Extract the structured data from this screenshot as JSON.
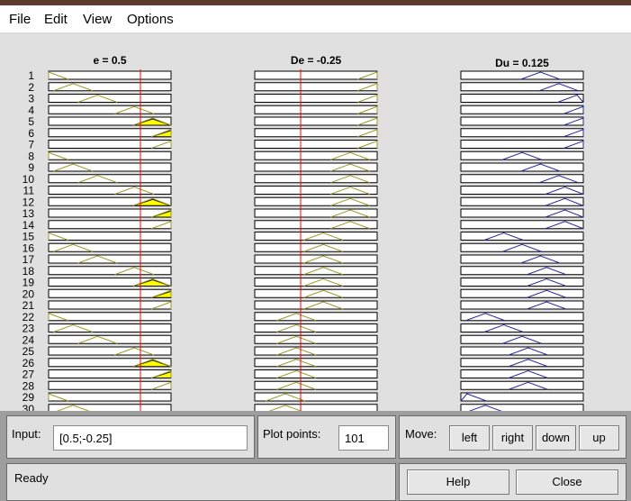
{
  "menu": {
    "file": "File",
    "edit": "Edit",
    "view": "View",
    "options": "Options"
  },
  "panels": [
    {
      "title": "e = 0.5",
      "input_value": 0.5,
      "line": "red",
      "rows_active": [
        5,
        6,
        12,
        13,
        19,
        20,
        26,
        27
      ]
    },
    {
      "title": "De = -0.25",
      "input_value": -0.25,
      "line": "red",
      "rows_active": []
    },
    {
      "title": "Du = 0.125",
      "output": true,
      "line": "blue",
      "rows_active": []
    }
  ],
  "rule_numbers": [
    "1",
    "2",
    "3",
    "4",
    "5",
    "6",
    "7",
    "8",
    "9",
    "10",
    "11",
    "12",
    "13",
    "14",
    "15",
    "16",
    "17",
    "18",
    "19",
    "20",
    "21",
    "22",
    "23",
    "24",
    "25",
    "26",
    "27",
    "28",
    "29",
    "30"
  ],
  "colors": {
    "mf_line": "#9a9a2a",
    "out_line": "#2a2aa0",
    "input_line": "#ff0000",
    "fill": "#ffff00",
    "row_border": "#000000"
  },
  "controls": {
    "input_label": "Input:",
    "input_value": "[0.5;-0.25]",
    "plot_points_label": "Plot points:",
    "plot_points_value": "101",
    "move_label": "Move:",
    "left_label": "left",
    "right_label": "right",
    "down_label": "down",
    "up_label": "up",
    "status": "Ready",
    "help_label": "Help",
    "close_label": "Close"
  }
}
